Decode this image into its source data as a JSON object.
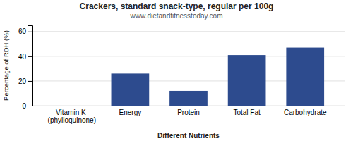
{
  "chart_data": {
    "type": "bar",
    "title": "Crackers, standard snack-type, regular per 100g",
    "subtitle": "www.dietandfitnesstoday.com",
    "categories": [
      "Vitamin K (phylloquinone)",
      "Energy",
      "Protein",
      "Total Fat",
      "Carbohydrate"
    ],
    "values": [
      0,
      26,
      12,
      41,
      47
    ],
    "color": "#2d4b8e",
    "xlabel": "Different Nutrients",
    "ylabel": "Percentage of RDH (%)",
    "ylim": [
      0,
      65
    ],
    "yticks": [
      0,
      20,
      40,
      60
    ],
    "grid": true
  }
}
